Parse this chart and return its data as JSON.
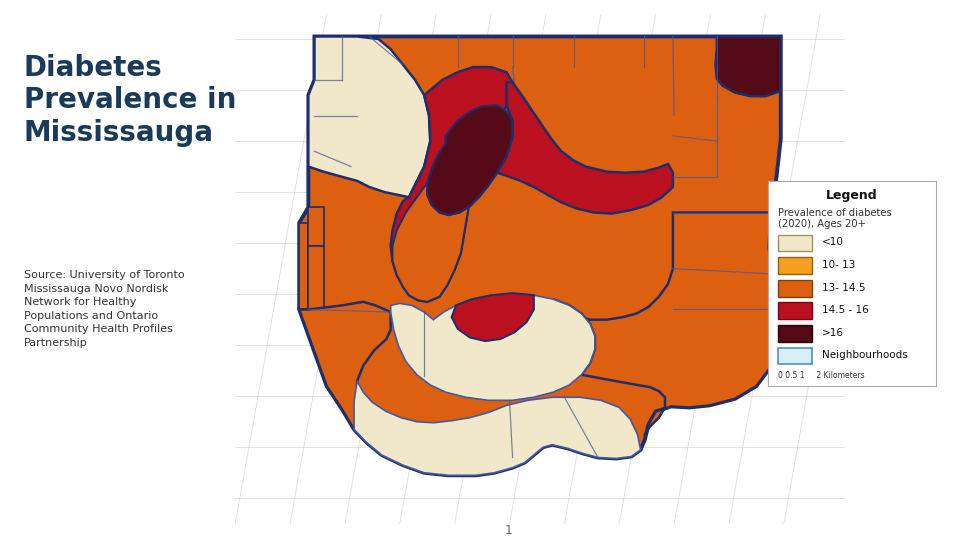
{
  "title": "Diabetes\nPrevalence in\nMississauga",
  "title_color": "#1a3a5c",
  "title_fontsize": 20,
  "source_text": "Source: University of Toronto\nMississauga Novo Nordisk\nNetwork for Healthy\nPopulations and Ontario\nCommunity Health Profiles\nPartnership",
  "source_fontsize": 8.0,
  "source_color": "#333333",
  "background_color": "#ffffff",
  "map_bg_color": "#d0d0d0",
  "legend_title": "Legend",
  "legend_subtitle": "Prevalence of diabetes\n(2020), Ages 20+",
  "legend_items": [
    {
      "label": "<10",
      "facecolor": "#f0e8c8",
      "edgecolor": "#a09060"
    },
    {
      "label": "10- 13",
      "facecolor": "#f5a020",
      "edgecolor": "#906010"
    },
    {
      "label": "13- 14.5",
      "facecolor": "#dd6010",
      "edgecolor": "#804000"
    },
    {
      "label": "14.5 - 16",
      "facecolor": "#bb1020",
      "edgecolor": "#800010"
    },
    {
      "label": ">16",
      "facecolor": "#550a18",
      "edgecolor": "#300008"
    }
  ],
  "neighbourhood_label": "Neighbourhoods",
  "colours": {
    "very_low": "#f0e8c8",
    "low": "#f5a020",
    "medium": "#dd6010",
    "high": "#bb1020",
    "very_high": "#550a18",
    "border": "#1e2e6a",
    "inner_border": "#4458a0"
  },
  "page_number": "1",
  "scale_bar_text": "0 0.5 1     2 Kilometers"
}
